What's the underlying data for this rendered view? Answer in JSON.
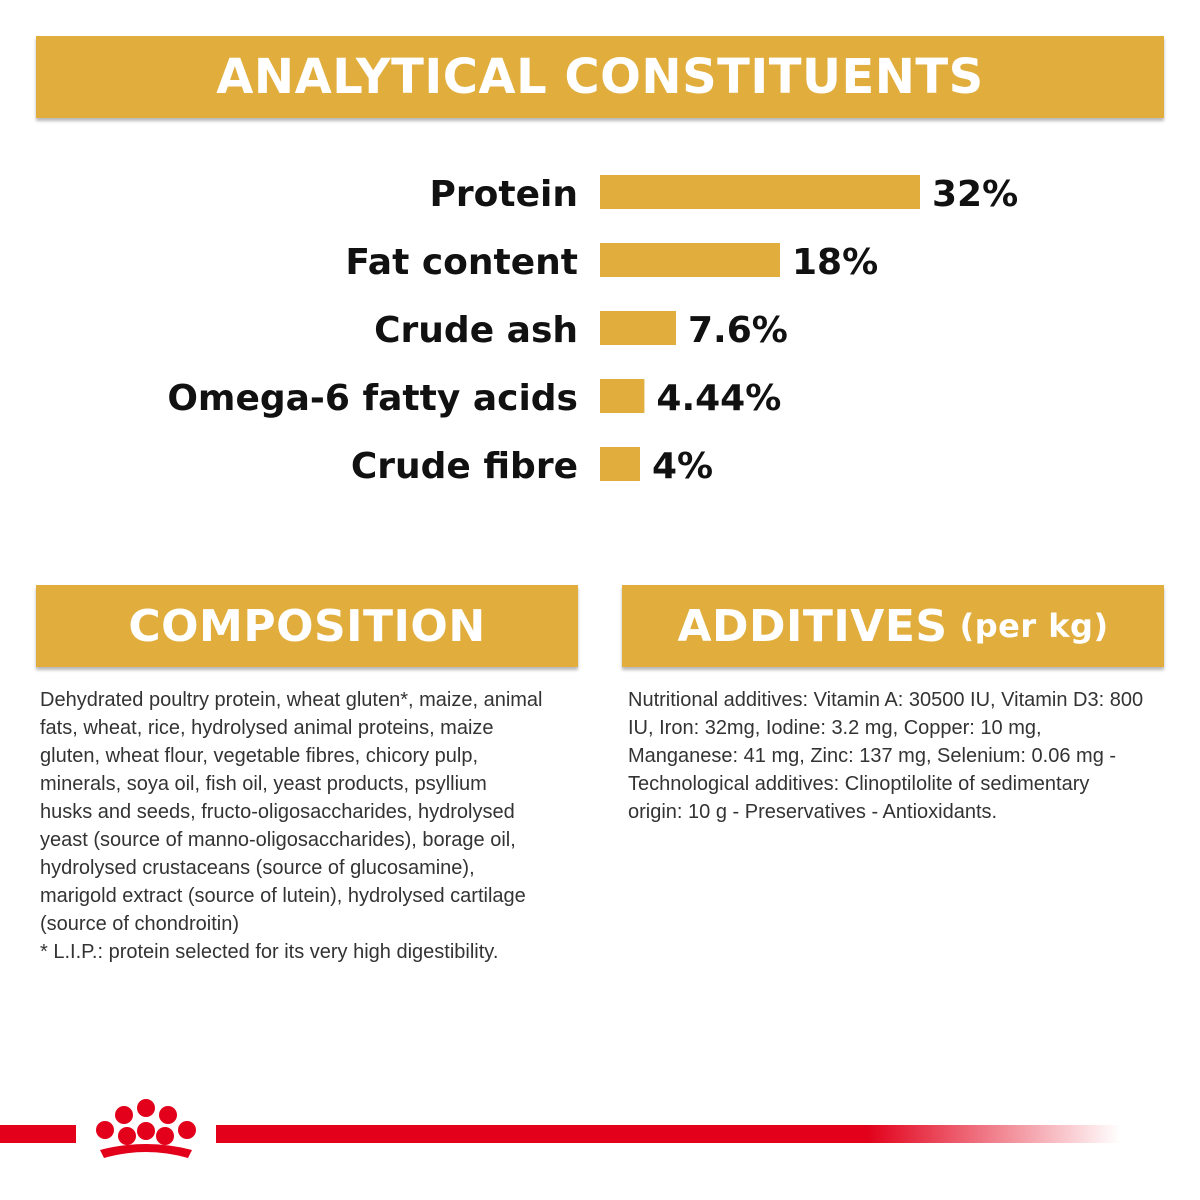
{
  "analytical": {
    "title": "ANALYTICAL CONSTITUENTS"
  },
  "chart_data": {
    "type": "bar",
    "orientation": "horizontal",
    "categories": [
      "Protein",
      "Fat content",
      "Crude ash",
      "Omega-6 fatty acids",
      "Crude fibre"
    ],
    "values": [
      32,
      18,
      7.6,
      4.44,
      4
    ],
    "value_labels": [
      "32%",
      "18%",
      "7.6%",
      "4.44%",
      "4%"
    ],
    "unit": "%",
    "title": "",
    "xlabel": "",
    "ylabel": "",
    "grid": false,
    "bar_color": "#E1AE3D"
  },
  "composition": {
    "title": "COMPOSITION",
    "lines": [
      "Dehydrated poultry protein, wheat gluten*, maize, animal",
      "fats, wheat, rice, hydrolysed animal proteins, maize",
      "gluten, wheat flour, vegetable fibres, chicory pulp,",
      "minerals, soya oil, fish oil, yeast products, psyllium",
      "husks and seeds, fructo-oligosaccharides, hydrolysed",
      "yeast (source of manno-oligosaccharides), borage oil,",
      "hydrolysed crustaceans (source of glucosamine),",
      "marigold extract (source of lutein), hydrolysed cartilage",
      "(source of chondroitin)",
      "* L.I.P.: protein selected for its very high digestibility."
    ]
  },
  "additives": {
    "title": "ADDITIVES",
    "title_suffix": "(per kg)",
    "lines": [
      "Nutritional additives: Vitamin A: 30500 IU, Vitamin D3: 800",
      "IU, Iron: 32mg, Iodine: 3.2 mg, Copper: 10 mg,",
      "Manganese: 41 mg, Zinc: 137 mg, Selenium: 0.06 mg -",
      "Technological additives: Clinoptilolite of sedimentary",
      "origin: 10 g - Preservatives - Antioxidants."
    ]
  },
  "footer": {
    "logo": "royal-canin-crown-icon",
    "line_color": "#E2001A"
  }
}
